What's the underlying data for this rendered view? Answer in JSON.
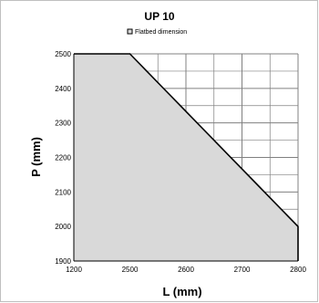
{
  "chart_data": {
    "type": "area",
    "title": "UP 10",
    "legend": {
      "entries": [
        "Flatbed dimension"
      ],
      "placement": "top-center"
    },
    "xlabel": "L (mm)",
    "ylabel": "P (mm)",
    "x_ticks": [
      "1200",
      "2500",
      "2600",
      "2700",
      "2800"
    ],
    "y_ticks": [
      "1900",
      "2000",
      "2100",
      "2200",
      "2300",
      "2400",
      "2500"
    ],
    "ylim": [
      1900,
      2500
    ],
    "grid": true,
    "series": [
      {
        "name": "Flatbed dimension",
        "x": [
          "1200",
          "2500",
          "2800",
          "2800"
        ],
        "y": [
          2500,
          2500,
          2000,
          1900
        ],
        "fill": "#d9d9d9",
        "line": "#000000"
      }
    ],
    "colors": {
      "grid": "#808080",
      "fill": "#d9d9d9",
      "outline": "#000000"
    }
  }
}
